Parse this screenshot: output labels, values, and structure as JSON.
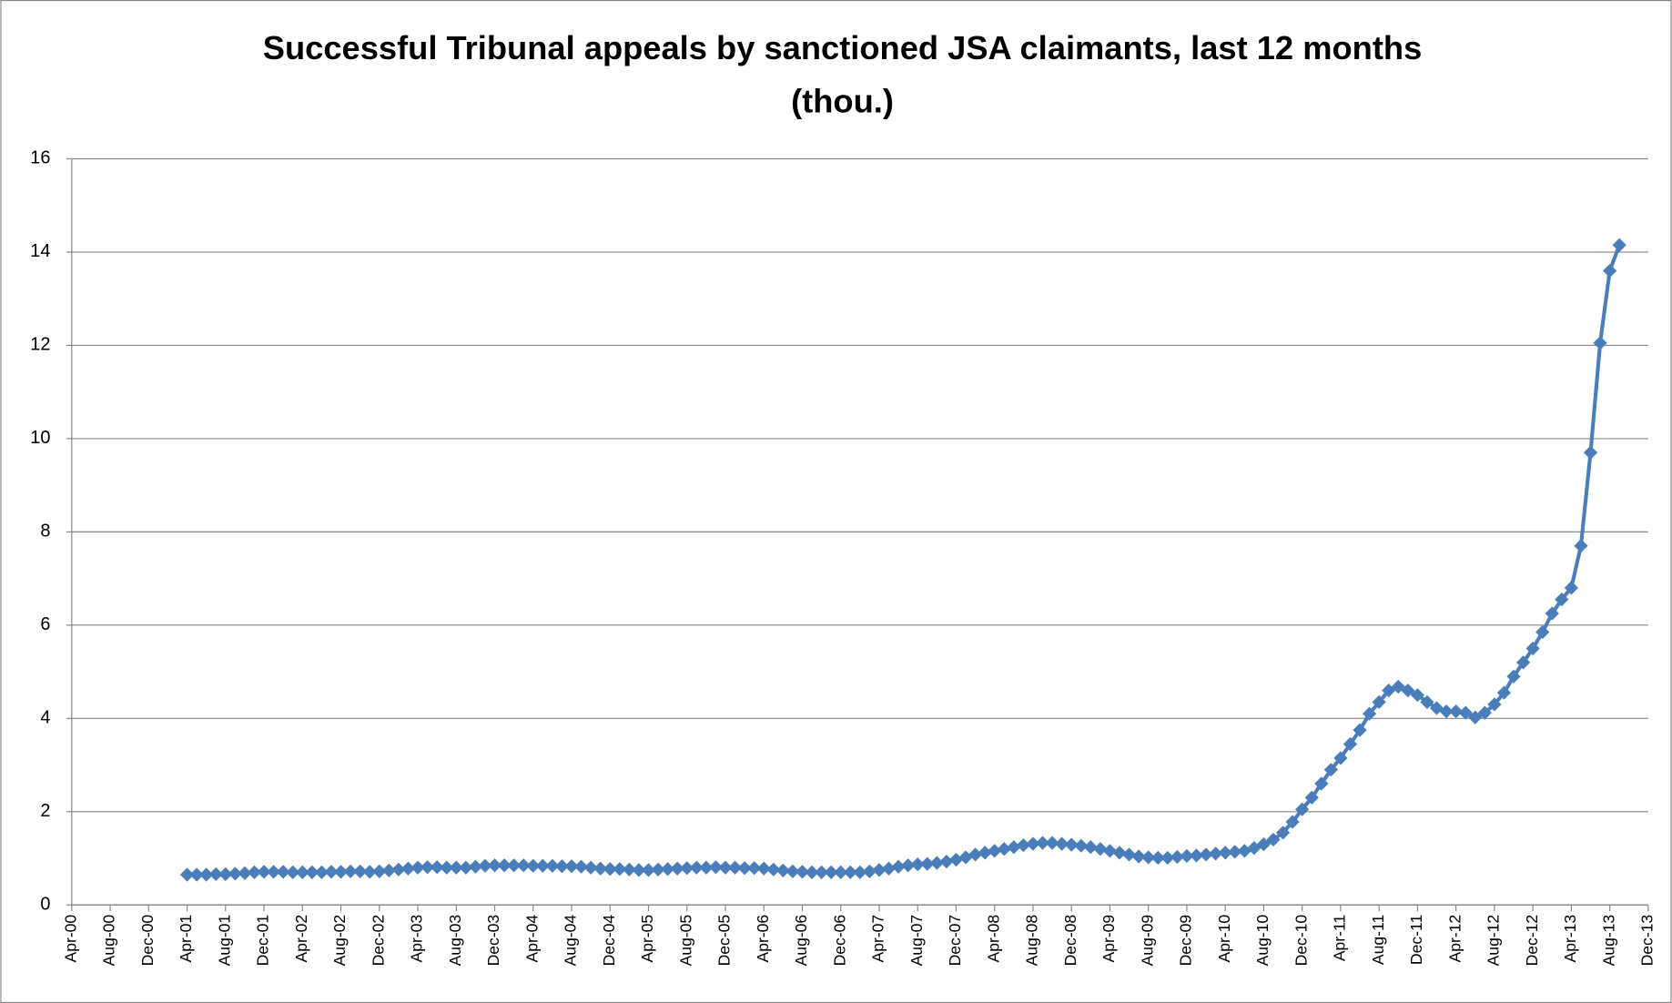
{
  "chart_data": {
    "type": "line",
    "title": "Successful Tribunal appeals by sanctioned JSA claimants, last 12 months (thou.)",
    "color": "#4a7ebb",
    "grid": true,
    "ylim": [
      0,
      16
    ],
    "yticks": [
      0,
      2,
      4,
      6,
      8,
      10,
      12,
      14,
      16
    ],
    "categories": [
      "Apr-00",
      null,
      null,
      null,
      "Aug-00",
      null,
      null,
      null,
      "Dec-00",
      null,
      null,
      null,
      "Apr-01",
      null,
      null,
      null,
      "Aug-01",
      null,
      null,
      null,
      "Dec-01",
      null,
      null,
      null,
      "Apr-02",
      null,
      null,
      null,
      "Aug-02",
      null,
      null,
      null,
      "Dec-02",
      null,
      null,
      null,
      "Apr-03",
      null,
      null,
      null,
      "Aug-03",
      null,
      null,
      null,
      "Dec-03",
      null,
      null,
      null,
      "Apr-04",
      null,
      null,
      null,
      "Aug-04",
      null,
      null,
      null,
      "Dec-04",
      null,
      null,
      null,
      "Apr-05",
      null,
      null,
      null,
      "Aug-05",
      null,
      null,
      null,
      "Dec-05",
      null,
      null,
      null,
      "Apr-06",
      null,
      null,
      null,
      "Aug-06",
      null,
      null,
      null,
      "Dec-06",
      null,
      null,
      null,
      "Apr-07",
      null,
      null,
      null,
      "Aug-07",
      null,
      null,
      null,
      "Dec-07",
      null,
      null,
      null,
      "Apr-08",
      null,
      null,
      null,
      "Aug-08",
      null,
      null,
      null,
      "Dec-08",
      null,
      null,
      null,
      "Apr-09",
      null,
      null,
      null,
      "Aug-09",
      null,
      null,
      null,
      "Dec-09",
      null,
      null,
      null,
      "Apr-10",
      null,
      null,
      null,
      "Aug-10",
      null,
      null,
      null,
      "Dec-10",
      null,
      null,
      null,
      "Apr-11",
      null,
      null,
      null,
      "Aug-11",
      null,
      null,
      null,
      "Dec-11",
      null,
      null,
      null,
      "Apr-12",
      null,
      null,
      null,
      "Aug-12",
      null,
      null,
      null,
      "Dec-12",
      null,
      null,
      null,
      "Apr-13",
      null,
      null,
      null,
      "Aug-13",
      null,
      null,
      null,
      "Dec-13"
    ],
    "values": [
      null,
      null,
      null,
      null,
      null,
      null,
      null,
      null,
      null,
      null,
      null,
      null,
      0.65,
      0.65,
      0.65,
      0.66,
      0.66,
      0.67,
      0.68,
      0.7,
      0.71,
      0.71,
      0.71,
      0.7,
      0.7,
      0.7,
      0.7,
      0.71,
      0.71,
      0.72,
      0.72,
      0.71,
      0.72,
      0.74,
      0.76,
      0.78,
      0.8,
      0.81,
      0.81,
      0.8,
      0.8,
      0.8,
      0.82,
      0.84,
      0.85,
      0.85,
      0.85,
      0.85,
      0.84,
      0.84,
      0.84,
      0.83,
      0.83,
      0.82,
      0.8,
      0.78,
      0.77,
      0.77,
      0.76,
      0.75,
      0.75,
      0.76,
      0.77,
      0.78,
      0.79,
      0.8,
      0.8,
      0.81,
      0.8,
      0.8,
      0.79,
      0.79,
      0.78,
      0.76,
      0.74,
      0.72,
      0.71,
      0.7,
      0.7,
      0.7,
      0.7,
      0.7,
      0.7,
      0.72,
      0.75,
      0.78,
      0.82,
      0.85,
      0.87,
      0.88,
      0.9,
      0.93,
      0.97,
      1.02,
      1.08,
      1.12,
      1.16,
      1.2,
      1.24,
      1.28,
      1.31,
      1.33,
      1.33,
      1.31,
      1.29,
      1.27,
      1.24,
      1.2,
      1.16,
      1.12,
      1.08,
      1.04,
      1.02,
      1.01,
      1.01,
      1.03,
      1.05,
      1.06,
      1.08,
      1.1,
      1.12,
      1.14,
      1.16,
      1.22,
      1.3,
      1.4,
      1.55,
      1.78,
      2.05,
      2.3,
      2.6,
      2.9,
      3.15,
      3.45,
      3.75,
      4.1,
      4.35,
      4.6,
      4.68,
      4.6,
      4.5,
      4.35,
      4.22,
      4.15,
      4.15,
      4.12,
      4.02,
      4.12,
      4.3,
      4.55,
      4.9,
      5.2,
      5.5,
      5.85,
      6.25,
      6.55,
      6.8,
      7.7,
      9.7,
      12.05,
      13.6,
      14.15,
      null,
      null,
      null
    ]
  }
}
